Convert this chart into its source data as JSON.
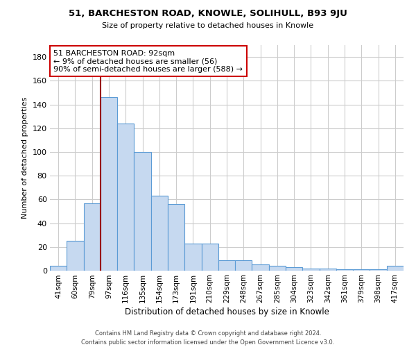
{
  "title": "51, BARCHESTON ROAD, KNOWLE, SOLIHULL, B93 9JU",
  "subtitle": "Size of property relative to detached houses in Knowle",
  "xlabel": "Distribution of detached houses by size in Knowle",
  "ylabel": "Number of detached properties",
  "bar_labels": [
    "41sqm",
    "60sqm",
    "79sqm",
    "97sqm",
    "116sqm",
    "135sqm",
    "154sqm",
    "173sqm",
    "191sqm",
    "210sqm",
    "229sqm",
    "248sqm",
    "267sqm",
    "285sqm",
    "304sqm",
    "323sqm",
    "342sqm",
    "361sqm",
    "379sqm",
    "398sqm",
    "417sqm"
  ],
  "bar_values": [
    4,
    25,
    57,
    146,
    124,
    100,
    63,
    56,
    23,
    23,
    9,
    9,
    5,
    4,
    3,
    2,
    2,
    1,
    1,
    1,
    4
  ],
  "bar_color": "#c6d9f0",
  "bar_edge_color": "#5b9bd5",
  "annotation_line1": "51 BARCHESTON ROAD: 92sqm",
  "annotation_line2": "← 9% of detached houses are smaller (56)",
  "annotation_line3": "90% of semi-detached houses are larger (588) →",
  "vline_color": "#990000",
  "annotation_box_edge": "#cc0000",
  "ylim": [
    0,
    190
  ],
  "yticks": [
    0,
    20,
    40,
    60,
    80,
    100,
    120,
    140,
    160,
    180
  ],
  "vline_x": 2.5,
  "footer1": "Contains HM Land Registry data © Crown copyright and database right 2024.",
  "footer2": "Contains public sector information licensed under the Open Government Licence v3.0."
}
